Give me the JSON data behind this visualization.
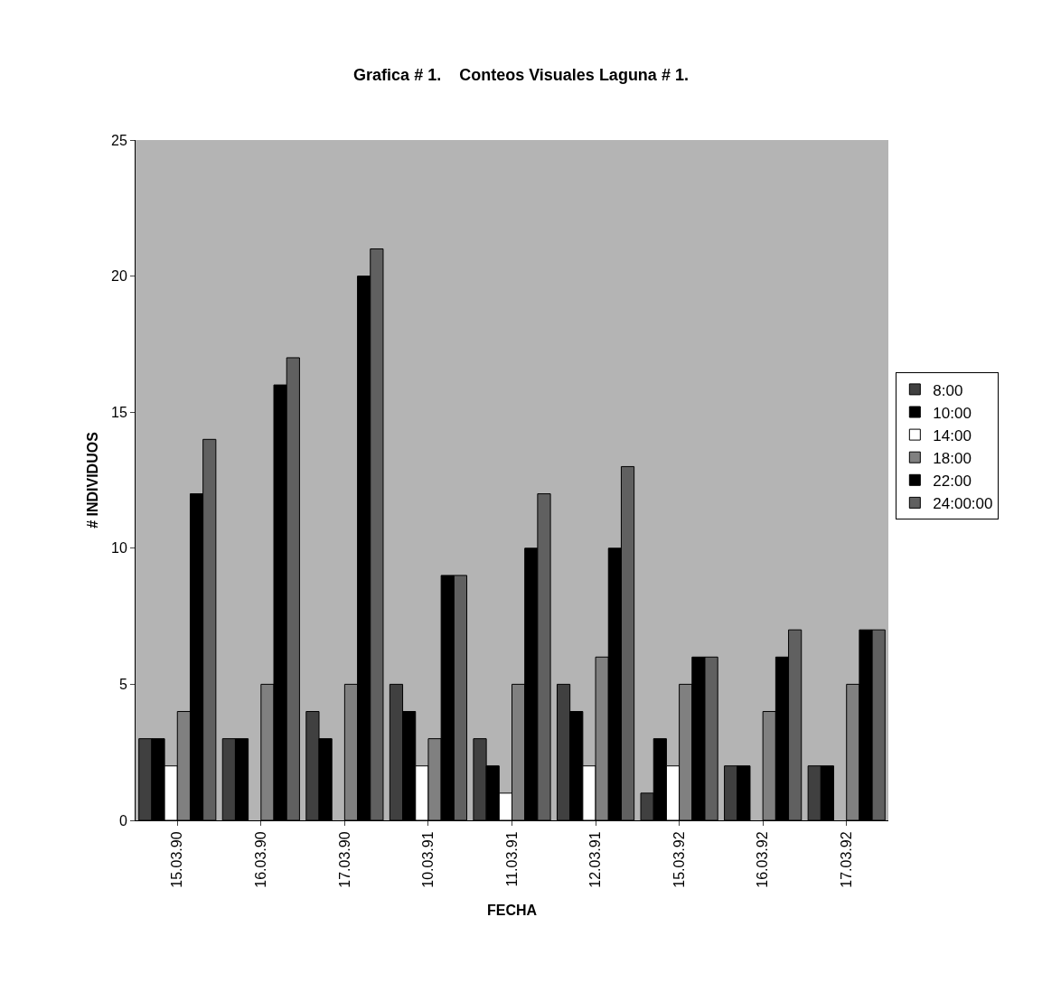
{
  "chart_data": {
    "type": "bar",
    "title": "Grafica # 1.    Conteos Visuales Laguna # 1.",
    "xlabel": "FECHA",
    "ylabel": "# INDIVIDUOS",
    "categories": [
      "15.03.90",
      "16.03.90",
      "17.03.90",
      "10.03.91",
      "11.03.91",
      "12.03.91",
      "15.03.92",
      "16.03.92",
      "17.03.92"
    ],
    "series": [
      {
        "name": "8:00",
        "color": "#404040",
        "values": [
          3,
          3,
          4,
          5,
          3,
          5,
          1,
          2,
          2
        ]
      },
      {
        "name": "10:00",
        "color": "#000000",
        "values": [
          3,
          3,
          3,
          4,
          2,
          4,
          3,
          2,
          2
        ]
      },
      {
        "name": "14:00",
        "color": "#ffffff",
        "values": [
          2,
          0,
          0,
          2,
          1,
          2,
          2,
          0,
          0
        ]
      },
      {
        "name": "18:00",
        "color": "#808080",
        "values": [
          4,
          5,
          5,
          3,
          5,
          6,
          5,
          4,
          5
        ]
      },
      {
        "name": "22:00",
        "color": "#000000",
        "values": [
          12,
          16,
          20,
          9,
          10,
          10,
          6,
          6,
          7
        ]
      },
      {
        "name": "24:00:00",
        "color": "#606060",
        "values": [
          14,
          17,
          21,
          9,
          12,
          13,
          6,
          7,
          7
        ]
      }
    ],
    "ylim": [
      0,
      25
    ],
    "yticks": [
      0,
      5,
      10,
      15,
      20,
      25
    ],
    "grid": false,
    "legend": "right"
  }
}
